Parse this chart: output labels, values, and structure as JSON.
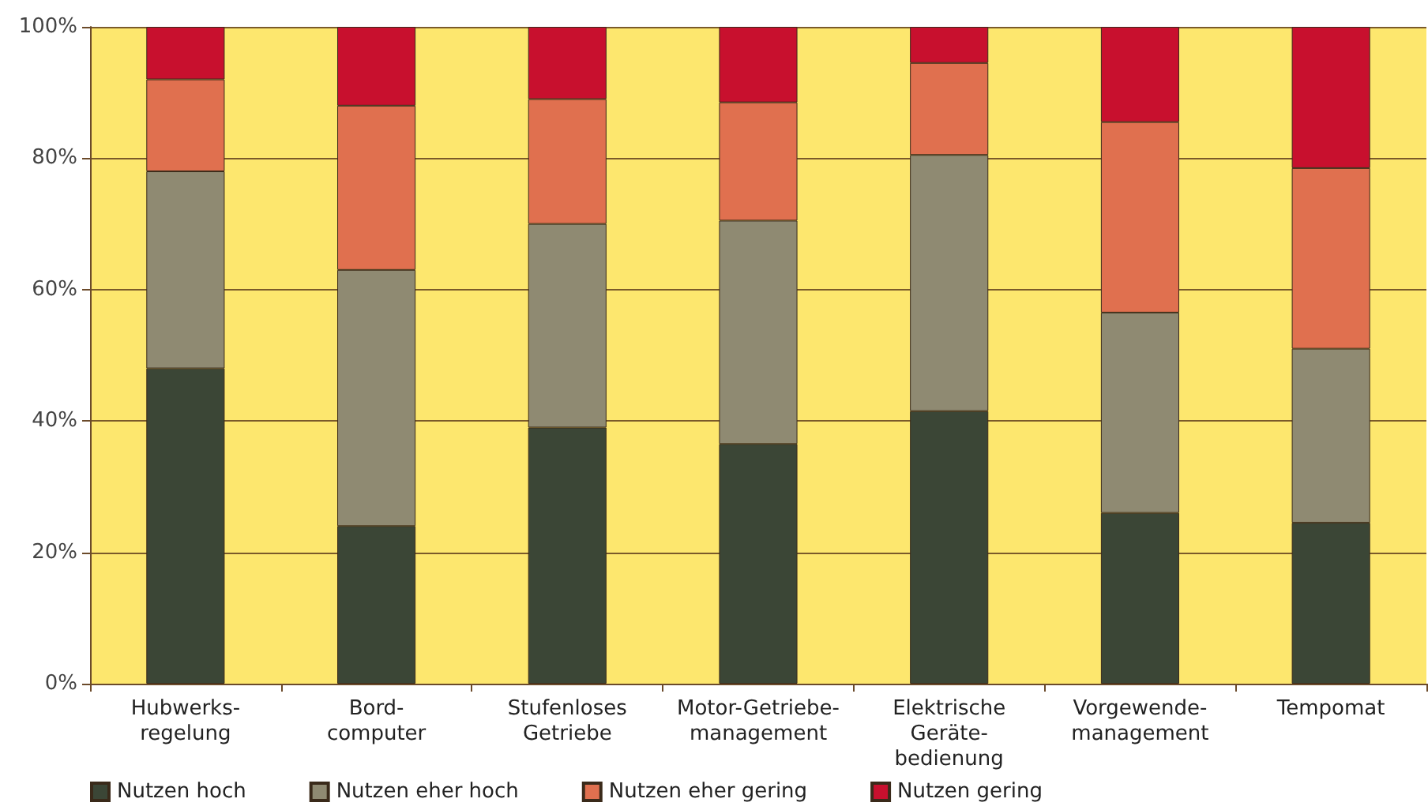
{
  "chart_data": {
    "type": "bar",
    "stacked": true,
    "categories": [
      "Hubwerks-\nregelung",
      "Bord-\ncomputer",
      "Stufenloses\nGetriebe",
      "Motor-Getriebe-\nmanagement",
      "Elektrische\nGeräte-\nbedienung",
      "Vorgewende-\nmanagement",
      "Tempomat"
    ],
    "series": [
      {
        "name": "Nutzen hoch",
        "color": "#3b4636",
        "values": [
          48,
          24,
          39,
          36.5,
          41.5,
          26,
          24.5
        ]
      },
      {
        "name": "Nutzen eher hoch",
        "color": "#8f8a72",
        "values": [
          30,
          39,
          31,
          34,
          39,
          30.5,
          26.5
        ]
      },
      {
        "name": "Nutzen eher gering",
        "color": "#e0704f",
        "values": [
          14,
          25,
          19,
          18,
          14,
          29,
          27.5
        ]
      },
      {
        "name": "Nutzen gering",
        "color": "#c8102e",
        "values": [
          8,
          12,
          11,
          11.5,
          5.5,
          14.5,
          21.5
        ]
      }
    ],
    "ylim": [
      0,
      100
    ],
    "yticks": [
      {
        "value": 0,
        "label": "0%"
      },
      {
        "value": 20,
        "label": "20%"
      },
      {
        "value": 40,
        "label": "40%"
      },
      {
        "value": 60,
        "label": "60%"
      },
      {
        "value": 80,
        "label": "80%"
      },
      {
        "value": 100,
        "label": "100%"
      }
    ],
    "grid": "y",
    "legend": "bottom left"
  }
}
